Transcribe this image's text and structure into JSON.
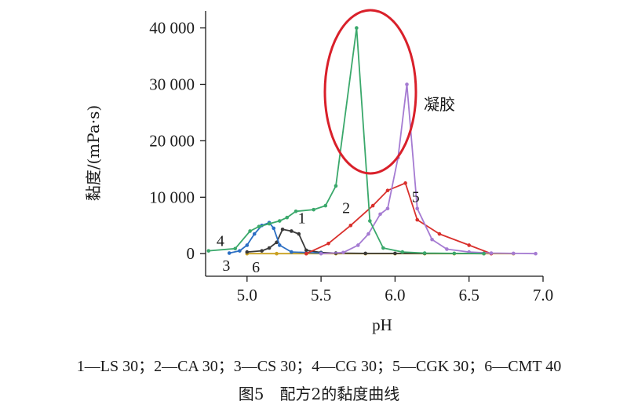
{
  "chart_data": {
    "type": "line",
    "xlabel": "pH",
    "ylabel": "黏度/(mPa·s)",
    "xlim": [
      4.72,
      7.0
    ],
    "ylim": [
      -4000,
      43000
    ],
    "xticks": [
      5.0,
      5.5,
      6.0,
      6.5,
      7.0
    ],
    "xtick_labels": [
      "5.0",
      "5.5",
      "6.0",
      "6.5",
      "7.0"
    ],
    "yticks": [
      0,
      10000,
      20000,
      30000,
      40000
    ],
    "ytick_labels": [
      "0",
      "10 000",
      "20 000",
      "30 000",
      "40 000"
    ],
    "grid": false,
    "series": [
      {
        "name": "1",
        "color": "#3a3a3a",
        "x": [
          5.0,
          5.1,
          5.15,
          5.2,
          5.24,
          5.3,
          5.35,
          5.4,
          5.5,
          5.6,
          5.8,
          6.0,
          6.2,
          6.6
        ],
        "y": [
          300,
          500,
          1000,
          2000,
          4300,
          4000,
          3500,
          600,
          200,
          100,
          50,
          50,
          50,
          50
        ]
      },
      {
        "name": "2",
        "color": "#d9302c",
        "x": [
          5.4,
          5.55,
          5.7,
          5.85,
          5.95,
          6.07,
          6.15,
          6.3,
          6.5,
          6.65
        ],
        "y": [
          0,
          1800,
          5000,
          8500,
          11200,
          12500,
          6000,
          3500,
          1500,
          0
        ]
      },
      {
        "name": "3",
        "color": "#2c6fc4",
        "x": [
          4.88,
          4.95,
          5.0,
          5.05,
          5.1,
          5.15,
          5.18,
          5.22,
          5.3,
          5.5
        ],
        "y": [
          100,
          500,
          1500,
          3500,
          5000,
          5500,
          4500,
          1500,
          300,
          100
        ]
      },
      {
        "name": "4",
        "color": "#3aa86b",
        "x": [
          4.74,
          4.92,
          5.02,
          5.08,
          5.15,
          5.22,
          5.27,
          5.33,
          5.45,
          5.53,
          5.6,
          5.74,
          5.83,
          5.92,
          6.05,
          6.2,
          6.4,
          6.6
        ],
        "y": [
          500,
          900,
          4000,
          4800,
          5300,
          5800,
          6400,
          7500,
          7800,
          8500,
          12000,
          40000,
          5800,
          1000,
          300,
          100,
          50,
          0
        ]
      },
      {
        "name": "5",
        "color": "#a57bd2",
        "x": [
          5.5,
          5.65,
          5.75,
          5.82,
          5.9,
          5.95,
          6.02,
          6.08,
          6.15,
          6.25,
          6.35,
          6.5,
          6.65,
          6.8,
          6.95
        ],
        "y": [
          0,
          200,
          1500,
          3500,
          7000,
          8000,
          17000,
          30000,
          8000,
          2500,
          800,
          300,
          100,
          50,
          0
        ]
      },
      {
        "name": "6",
        "color": "#c9a020",
        "x": [
          5.0,
          5.2,
          5.4,
          5.6,
          5.8,
          6.0,
          6.2,
          6.4,
          6.6,
          6.8
        ],
        "y": [
          0,
          0,
          0,
          0,
          0,
          0,
          0,
          0,
          0,
          0
        ]
      }
    ],
    "annotation": "凝胶",
    "legend_text": "1—LS 30；2—CA 30；3—CS 30；4—CG 30；5—CGK 30；6—CMT 40",
    "caption": "图5　配方2的黏度曲线"
  }
}
